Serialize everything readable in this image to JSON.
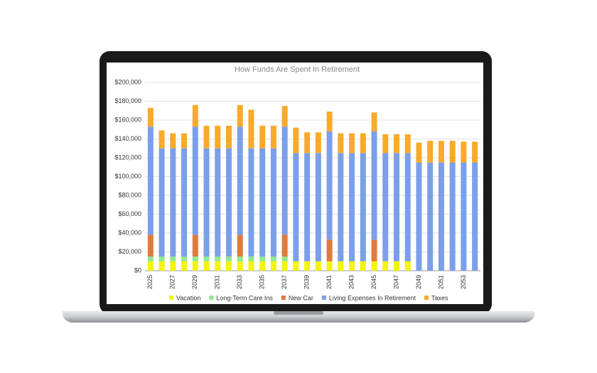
{
  "chart_data": {
    "type": "stacked-bar",
    "title": "How Funds Are Spent In Retirement",
    "categories": [
      "2025",
      null,
      "2027",
      null,
      "2029",
      null,
      "2031",
      null,
      "2033",
      null,
      "2035",
      null,
      "2037",
      null,
      "2039",
      null,
      "2041",
      null,
      "2043",
      null,
      "2045",
      null,
      "2047",
      null,
      "2049",
      null,
      "2051",
      null,
      "2053",
      null
    ],
    "series": [
      {
        "name": "Vacation",
        "color": "#f4f40a",
        "values": [
          10000,
          10000,
          10000,
          10000,
          10000,
          10000,
          10000,
          10000,
          10000,
          10000,
          10000,
          10000,
          10000,
          10000,
          10000,
          10000,
          10000,
          10000,
          10000,
          10000,
          10000,
          10000,
          10000,
          10000,
          0,
          0,
          0,
          0,
          0,
          0
        ]
      },
      {
        "name": "Long-Term Care Ins",
        "color": "#8ee88e",
        "values": [
          5000,
          5000,
          5000,
          5000,
          5000,
          5000,
          5000,
          5000,
          5000,
          5000,
          5000,
          5000,
          5000,
          0,
          0,
          0,
          0,
          0,
          0,
          0,
          0,
          0,
          0,
          0,
          0,
          0,
          0,
          0,
          0,
          0
        ]
      },
      {
        "name": "New Car",
        "color": "#e07a3a",
        "values": [
          23000,
          0,
          0,
          0,
          23000,
          0,
          0,
          0,
          23000,
          0,
          0,
          0,
          23000,
          0,
          0,
          0,
          23000,
          0,
          0,
          0,
          23000,
          0,
          0,
          0,
          0,
          0,
          0,
          0,
          0,
          0
        ]
      },
      {
        "name": "Living Expenses In Retirement",
        "color": "#7b9fe9",
        "values": [
          115000,
          115000,
          115000,
          115000,
          115000,
          115000,
          115000,
          115000,
          115000,
          115000,
          115000,
          115000,
          115000,
          115000,
          115000,
          115000,
          115000,
          115000,
          115000,
          115000,
          115000,
          115000,
          115000,
          115000,
          115000,
          115000,
          115000,
          115000,
          115000,
          115000
        ]
      },
      {
        "name": "Taxes",
        "color": "#f9aa2a",
        "values": [
          20000,
          19000,
          16000,
          16000,
          23000,
          24000,
          24000,
          24000,
          23000,
          41000,
          24000,
          24000,
          22000,
          27000,
          22000,
          22000,
          21000,
          21000,
          21000,
          21000,
          20000,
          20000,
          20000,
          20000,
          21000,
          23000,
          23000,
          23000,
          22000,
          22000
        ]
      }
    ],
    "ylim": [
      0,
      200000
    ],
    "yticks": [
      {
        "value": 0,
        "label": "$0"
      },
      {
        "value": 20000,
        "label": "$20,000"
      },
      {
        "value": 40000,
        "label": "$40,000"
      },
      {
        "value": 60000,
        "label": "$60,000"
      },
      {
        "value": 80000,
        "label": "$80,000"
      },
      {
        "value": 100000,
        "label": "$100,000"
      },
      {
        "value": 120000,
        "label": "$120,000"
      },
      {
        "value": 140000,
        "label": "$140,000"
      },
      {
        "value": 160000,
        "label": "$160,000"
      },
      {
        "value": 180000,
        "label": "$180,000"
      },
      {
        "value": 200000,
        "label": "$200,000"
      }
    ],
    "grid": true
  }
}
